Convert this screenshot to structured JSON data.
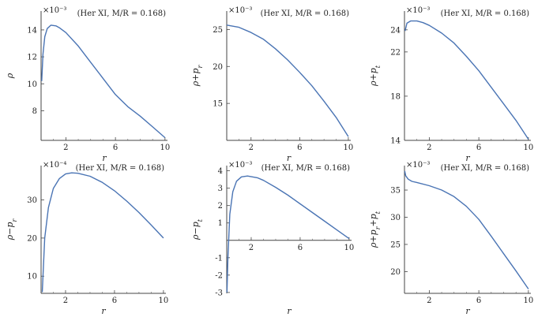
{
  "chart_data": [
    {
      "type": "line",
      "ylabel": "ρ",
      "xlabel": "r",
      "multiplier": "×10⁻³",
      "annotation": "(Her XI, M/R = 0.168)",
      "xlim": [
        0,
        10.2
      ],
      "ylim": [
        5.8,
        15.4
      ],
      "xticks": [
        2,
        6,
        10
      ],
      "yticks": [
        8,
        10,
        12,
        14
      ],
      "series": [
        {
          "line_color": "#4a74b4",
          "x": [
            0.05,
            0.15,
            0.3,
            0.5,
            0.8,
            1.2,
            1.5,
            2,
            3,
            4,
            5,
            6,
            7,
            8,
            9,
            10
          ],
          "y": [
            10.2,
            12.2,
            13.5,
            14.1,
            14.35,
            14.3,
            14.15,
            13.8,
            12.8,
            11.6,
            10.4,
            9.2,
            8.3,
            7.6,
            6.8,
            6.0
          ]
        }
      ]
    },
    {
      "type": "line",
      "ylabel": "ρ+pr",
      "xlabel": "r",
      "multiplier": "×10⁻³",
      "annotation": "(Her XI, M/R = 0.168)",
      "xlim": [
        0,
        10.2
      ],
      "ylim": [
        10,
        27.5
      ],
      "xticks": [
        2,
        6,
        10
      ],
      "yticks": [
        15,
        20,
        25
      ],
      "series": [
        {
          "line_color": "#4a74b4",
          "x": [
            0,
            1,
            2,
            3,
            4,
            5,
            6,
            7,
            8,
            9,
            10
          ],
          "y": [
            25.6,
            25.3,
            24.6,
            23.7,
            22.4,
            20.9,
            19.2,
            17.4,
            15.3,
            13.1,
            10.5
          ]
        }
      ]
    },
    {
      "type": "line",
      "ylabel": "ρ+pt",
      "xlabel": "r",
      "multiplier": "×10⁻³",
      "annotation": "(Her XI, M/R = 0.168)",
      "xlim": [
        0,
        10.2
      ],
      "ylim": [
        14,
        25.7
      ],
      "xticks": [
        2,
        6,
        10
      ],
      "yticks": [
        14,
        18,
        22,
        24
      ],
      "series": [
        {
          "line_color": "#4a74b4",
          "x": [
            0.05,
            0.2,
            0.5,
            1,
            1.5,
            2,
            3,
            4,
            5,
            6,
            7,
            8,
            9,
            10
          ],
          "y": [
            23.9,
            24.6,
            24.8,
            24.8,
            24.65,
            24.4,
            23.7,
            22.8,
            21.6,
            20.3,
            18.8,
            17.3,
            15.8,
            14.1
          ]
        }
      ]
    },
    {
      "type": "line",
      "ylabel": "ρ−pr",
      "xlabel": "r",
      "multiplier": "×10⁻⁴",
      "annotation": "(Her XI, M/R = 0.168)",
      "xlim": [
        0,
        10.2
      ],
      "ylim": [
        5.5,
        39
      ],
      "xticks": [
        2,
        6,
        10
      ],
      "yticks": [
        10,
        20,
        30
      ],
      "series": [
        {
          "line_color": "#4a74b4",
          "x": [
            0.1,
            0.3,
            0.6,
            1,
            1.5,
            2,
            2.5,
            3,
            4,
            5,
            6,
            7,
            8,
            9,
            10
          ],
          "y": [
            5.8,
            20.0,
            28.0,
            33.0,
            35.6,
            36.8,
            37.1,
            37.0,
            36.2,
            34.6,
            32.4,
            29.7,
            26.7,
            23.4,
            20.0
          ]
        }
      ]
    },
    {
      "type": "line",
      "ylabel": "ρ−pt",
      "xlabel": "r",
      "multiplier": "×10⁻³",
      "annotation": "(Her XI, M/R = 0.168)",
      "xlim": [
        0,
        10.2
      ],
      "ylim": [
        -3.05,
        4.3
      ],
      "xticks": [
        2,
        6,
        10
      ],
      "yticks": [
        -3,
        -2,
        -1,
        1,
        2,
        3,
        4
      ],
      "series": [
        {
          "line_color": "#4a74b4",
          "x": [
            0.02,
            0.1,
            0.25,
            0.5,
            0.8,
            1.2,
            1.7,
            2.5,
            3,
            4,
            5,
            6,
            7,
            8,
            9,
            10
          ],
          "y": [
            -3.0,
            -1.0,
            1.5,
            2.8,
            3.4,
            3.65,
            3.7,
            3.6,
            3.45,
            3.05,
            2.6,
            2.1,
            1.6,
            1.1,
            0.6,
            0.1
          ]
        }
      ]
    },
    {
      "type": "line",
      "ylabel": "ρ+pr+pt",
      "xlabel": "r",
      "multiplier": "×10⁻³",
      "annotation": "(Her XI, M/R = 0.168)",
      "xlim": [
        0,
        10.2
      ],
      "ylim": [
        16,
        39.5
      ],
      "xticks": [
        2,
        6,
        10
      ],
      "yticks": [
        20,
        25,
        30,
        35
      ],
      "series": [
        {
          "line_color": "#4a74b4",
          "x": [
            0.02,
            0.1,
            0.3,
            0.6,
            1,
            2,
            3,
            4,
            5,
            6,
            7,
            8,
            9,
            10
          ],
          "y": [
            38.5,
            37.6,
            37.0,
            36.6,
            36.4,
            35.8,
            35.0,
            33.8,
            32.0,
            29.6,
            26.5,
            23.3,
            20.1,
            16.8
          ]
        }
      ]
    }
  ]
}
